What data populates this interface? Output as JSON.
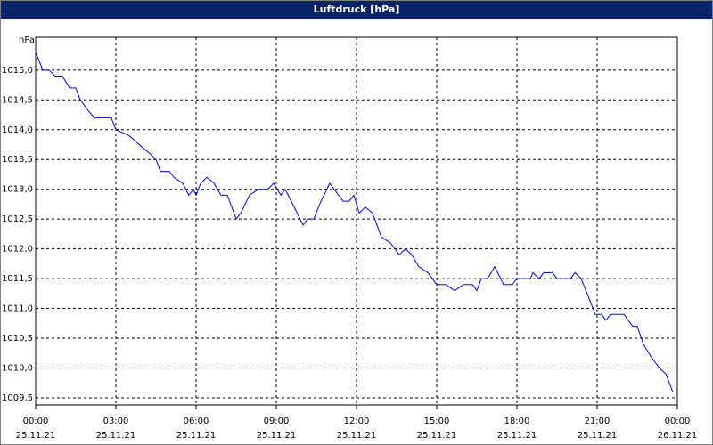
{
  "chart_data": {
    "type": "line",
    "title": "Luftdruck [hPa]",
    "y_label": "hPa",
    "x": [
      0,
      0.27,
      0.5,
      0.73,
      1,
      1.27,
      1.5,
      1.67,
      2,
      2.2,
      2.5,
      2.83,
      3,
      3.5,
      4,
      4.27,
      4.5,
      4.67,
      5,
      5.17,
      5.5,
      5.73,
      5.9,
      6,
      6.17,
      6.4,
      6.67,
      6.93,
      7.17,
      7.5,
      7.67,
      8,
      8.33,
      8.67,
      8.9,
      9.17,
      9.33,
      9.67,
      10,
      10.17,
      10.4,
      10.67,
      11,
      11.33,
      11.5,
      11.73,
      11.9,
      12.1,
      12.33,
      12.6,
      12.93,
      13.27,
      13.6,
      13.83,
      14.07,
      14.33,
      14.67,
      15,
      15.33,
      15.67,
      16,
      16.33,
      16.5,
      16.67,
      16.9,
      17.17,
      17.5,
      17.83,
      18,
      18.5,
      18.6,
      18.83,
      19,
      19.33,
      19.5,
      20,
      20.17,
      20.4,
      20.67,
      20.93,
      21.17,
      21.33,
      21.5,
      22,
      22.33,
      22.5,
      22.73,
      23,
      23.33,
      23.57,
      23.83
    ],
    "series": [
      {
        "name": "Luftdruck",
        "color": "#0000ff",
        "values": [
          1015.3,
          1015.0,
          1015.0,
          1014.9,
          1014.9,
          1014.7,
          1014.7,
          1014.5,
          1014.3,
          1014.2,
          1014.2,
          1014.2,
          1014.0,
          1013.9,
          1013.7,
          1013.6,
          1013.5,
          1013.3,
          1013.3,
          1013.2,
          1013.1,
          1012.9,
          1013.0,
          1012.9,
          1013.1,
          1013.2,
          1013.1,
          1012.9,
          1012.9,
          1012.5,
          1012.6,
          1012.9,
          1013.0,
          1013.0,
          1013.1,
          1012.9,
          1013.0,
          1012.7,
          1012.4,
          1012.5,
          1012.5,
          1012.8,
          1013.1,
          1012.9,
          1012.8,
          1012.8,
          1012.9,
          1012.6,
          1012.7,
          1012.6,
          1012.2,
          1012.1,
          1011.9,
          1012.0,
          1011.9,
          1011.7,
          1011.6,
          1011.4,
          1011.4,
          1011.3,
          1011.4,
          1011.4,
          1011.3,
          1011.5,
          1011.5,
          1011.7,
          1011.4,
          1011.4,
          1011.5,
          1011.5,
          1011.6,
          1011.5,
          1011.6,
          1011.6,
          1011.5,
          1011.5,
          1011.6,
          1011.5,
          1011.2,
          1010.9,
          1010.9,
          1010.8,
          1010.9,
          1010.9,
          1010.7,
          1010.7,
          1010.4,
          1010.2,
          1010.0,
          1009.9,
          1009.6
        ]
      }
    ],
    "xlim": [
      0,
      24
    ],
    "xticks": [
      {
        "value": 0,
        "label": "00:00",
        "date": "25.11.21"
      },
      {
        "value": 3,
        "label": "03:00",
        "date": "25.11.21"
      },
      {
        "value": 6,
        "label": "06:00",
        "date": "25.11.21"
      },
      {
        "value": 9,
        "label": "09:00",
        "date": "25.11.21"
      },
      {
        "value": 12,
        "label": "12:00",
        "date": "25.11.21"
      },
      {
        "value": 15,
        "label": "15:00",
        "date": "25.11.21"
      },
      {
        "value": 18,
        "label": "18:00",
        "date": "25.11.21"
      },
      {
        "value": 21,
        "label": "21:00",
        "date": "25.11.21"
      },
      {
        "value": 24,
        "label": "00:00",
        "date": "26.11.21"
      }
    ],
    "ylim": [
      1009.38,
      1015.55
    ],
    "yticks": [
      {
        "value": 1009.5,
        "label": "1009,5"
      },
      {
        "value": 1010,
        "label": "1010,0"
      },
      {
        "value": 1010.5,
        "label": "1010,5"
      },
      {
        "value": 1011,
        "label": "1011,0"
      },
      {
        "value": 1011.5,
        "label": "1011,5"
      },
      {
        "value": 1012,
        "label": "1012,0"
      },
      {
        "value": 1012.5,
        "label": "1012,5"
      },
      {
        "value": 1013,
        "label": "1013,0"
      },
      {
        "value": 1013.5,
        "label": "1013,5"
      },
      {
        "value": 1014,
        "label": "1014,0"
      },
      {
        "value": 1014.5,
        "label": "1014,5"
      },
      {
        "value": 1015,
        "label": "1015,0"
      }
    ],
    "grid": true
  }
}
